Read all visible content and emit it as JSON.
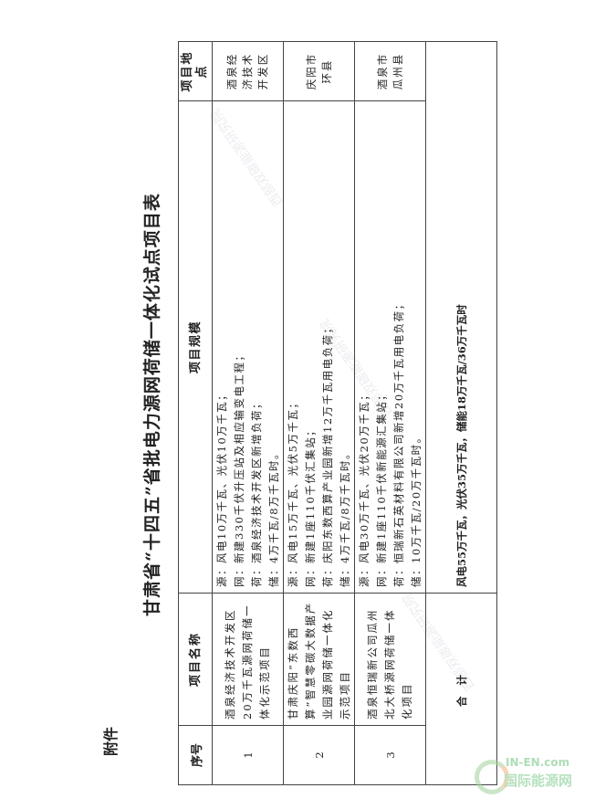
{
  "attachment_label": "附件",
  "title": "甘肃省“十四五”省批电力源网荷储一体化试点项目表",
  "table": {
    "headers": [
      "序号",
      "项目名称",
      "项目规模",
      "项目地点"
    ],
    "rows": [
      {
        "no": "1",
        "name": "酒泉经济技术开发区20万千瓦源网荷储一体化示范项目",
        "scale": [
          "源：风电10万千瓦、光伏10万千瓦；",
          "网：新建330千伏升压站及相应输变电工程；",
          "荷：酒泉经济技术开发区新增负荷；",
          "储：4万千瓦/8万千瓦时。"
        ],
        "location": "酒泉经济技术开发区"
      },
      {
        "no": "2",
        "name": "甘肃庆阳“东数西算”智慧零碳大数据产业园源网荷储一体化示范项目",
        "scale": [
          "源：风电15万千瓦、光伏5万千瓦；",
          "网：新建1座110千伏汇集站；",
          "荷：庆阳东数西算产业园新增12万千瓦用电负荷；",
          "储：4万千瓦/8万千瓦时。"
        ],
        "location": "庆阳市环县"
      },
      {
        "no": "3",
        "name": "酒泉恒瑞新公司瓜州北大桥源网荷储一体化项目",
        "scale": [
          "源：风电30万千瓦、光伏20万千瓦；",
          "网：新建1座110千伏新能源汇集站；",
          "荷：恒瑞新石英材料有限公司新增20万千瓦用电负荷；",
          "储：10万千瓦/20万千瓦时。"
        ],
        "location": "酒泉市瓜州县"
      }
    ],
    "total_label": "合  计",
    "total_value": "风电55万千瓦，光伏35万千瓦，储能18万千瓦/36万千瓦时"
  },
  "logo": {
    "en": "IN-EN.com",
    "cn": "国际能源网"
  }
}
